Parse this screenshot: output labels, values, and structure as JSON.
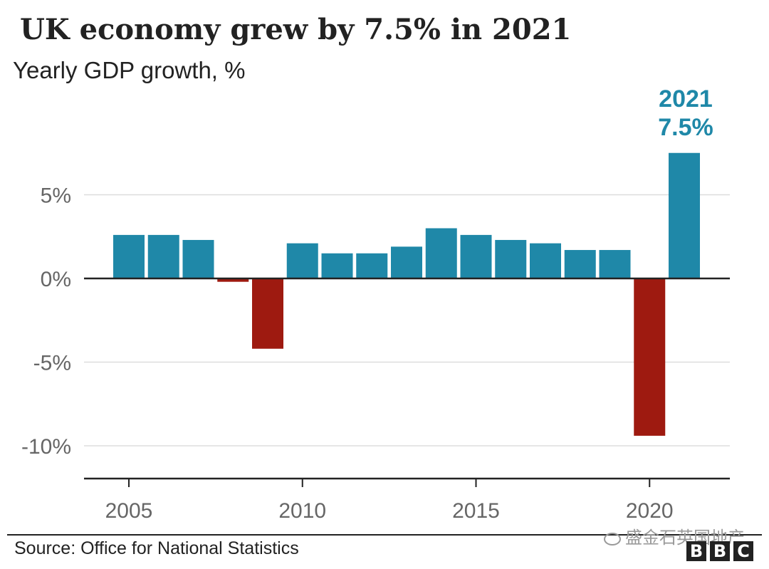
{
  "header": {
    "title": "UK economy grew by 7.5% in 2021",
    "subtitle": "Yearly GDP growth, %"
  },
  "footer": {
    "source": "Source: Office for National Statistics",
    "watermark": "盛金石英国地产",
    "logo_letters": [
      "B",
      "B",
      "C"
    ]
  },
  "colors": {
    "positive": "#1f88a8",
    "negative": "#9e1a10",
    "annotation": "#1f88a8",
    "grid": "#dddddd",
    "axis": "#222222",
    "tick_text": "#666666"
  },
  "chart_data": {
    "type": "bar",
    "title": "UK economy grew by 7.5% in 2021",
    "subtitle": "Yearly GDP growth, %",
    "xlabel": "",
    "ylabel": "Yearly GDP growth, %",
    "x": [
      2005,
      2006,
      2007,
      2008,
      2009,
      2010,
      2011,
      2012,
      2013,
      2014,
      2015,
      2016,
      2017,
      2018,
      2019,
      2020,
      2021
    ],
    "values": [
      2.6,
      2.6,
      2.3,
      -0.2,
      -4.2,
      2.1,
      1.5,
      1.5,
      1.9,
      3.0,
      2.6,
      2.3,
      2.1,
      1.7,
      1.7,
      -9.4,
      7.5
    ],
    "ylim": [
      -12,
      9
    ],
    "yticks": [
      5,
      0,
      -5,
      -10
    ],
    "ytick_labels": [
      "5%",
      "0%",
      "-5%",
      "-10%"
    ],
    "xticks": [
      2005,
      2010,
      2015,
      2020
    ],
    "xtick_labels": [
      "2005",
      "2010",
      "2015",
      "2020"
    ],
    "grid": true,
    "annotation": {
      "year": 2021,
      "line1": "2021",
      "line2": "7.5%"
    }
  }
}
